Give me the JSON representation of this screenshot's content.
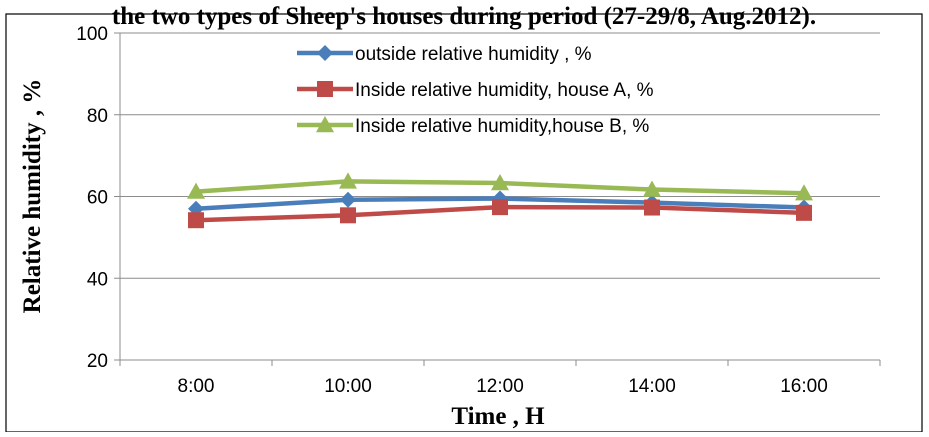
{
  "chart_data": {
    "type": "line",
    "title": "the two types of Sheep's houses during period (27-29/8, Aug.2012).",
    "xlabel": "Time , H",
    "ylabel": "Relative humidity ,  %",
    "categories": [
      "8:00",
      "10:00",
      "12:00",
      "14:00",
      "16:00"
    ],
    "ylim": [
      20,
      100
    ],
    "yticks": [
      20,
      40,
      60,
      80,
      100
    ],
    "grid": "horizontal",
    "legend": "top-center, inside plot",
    "series": [
      {
        "name": "outside relative humidity , %",
        "color": "#4a7ebb",
        "marker": "diamond",
        "values": [
          57.0,
          59.2,
          59.5,
          58.5,
          57.3
        ]
      },
      {
        "name": "Inside relative  humidity, house A, %",
        "color": "#be4b48",
        "marker": "square",
        "values": [
          54.2,
          55.4,
          57.4,
          57.3,
          56.0
        ]
      },
      {
        "name": "Inside relative humidity,house B, %",
        "color": "#98b954",
        "marker": "triangle",
        "values": [
          61.2,
          63.7,
          63.3,
          61.7,
          60.8
        ]
      }
    ]
  }
}
